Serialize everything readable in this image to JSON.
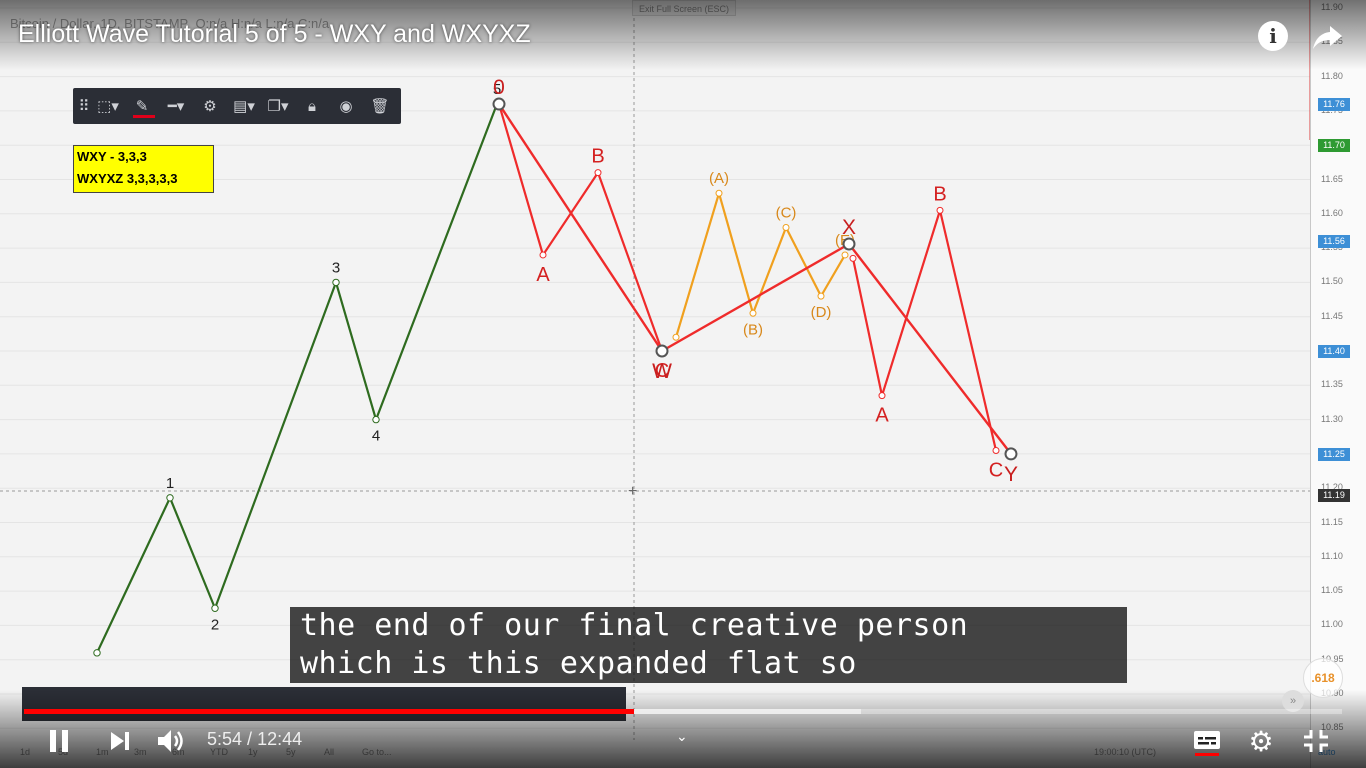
{
  "video": {
    "title": "Elliott Wave Tutorial 5 of 5 - WXY and WXYXZ",
    "current_time": "5:54",
    "duration": "12:44",
    "played_fraction": 0.463,
    "caption_lines": [
      "the end of our final creative person",
      "which is this expanded flat so"
    ]
  },
  "chart_header": {
    "symbol": "Bitcoin / Dollar, 1D, BITSTAMP",
    "ohlc": "O:n/a H:n/a L:n/a C:n/a",
    "exit_fullscreen": "Exit Full Screen (ESC)"
  },
  "note": {
    "line1": "WXY - 3,3,3",
    "line2": "WXYXZ 3,3,3,3,3"
  },
  "price_axis": {
    "ticks": [
      "11.90",
      "11.85",
      "11.80",
      "11.75",
      "11.70",
      "11.65",
      "11.60",
      "11.55",
      "11.50",
      "11.45",
      "11.40",
      "11.35",
      "11.30",
      "11.25",
      "11.20",
      "11.15",
      "11.10",
      "11.05",
      "11.00",
      "10.95",
      "10.90",
      "10.85"
    ],
    "labels": [
      {
        "value": "11.76",
        "color": "#3d8fd6"
      },
      {
        "value": "11.70",
        "color": "#2e9a32"
      },
      {
        "value": "11.56",
        "color": "#3d8fd6"
      },
      {
        "value": "11.40",
        "color": "#3d8fd6"
      },
      {
        "value": "11.25",
        "color": "#3d8fd6"
      },
      {
        "value": "11.19",
        "color": "#333333"
      }
    ]
  },
  "bottom_bar": {
    "periods": [
      "1d",
      "5d",
      "1m",
      "3m",
      "6m",
      "YTD",
      "1y",
      "5y",
      "All",
      "Go to..."
    ],
    "clock": "19:00:10 (UTC)",
    "scale": "auto"
  },
  "fib_badge": ".618",
  "chart_data": {
    "type": "line",
    "y_unit": "price",
    "ylim": [
      10.85,
      11.9
    ],
    "impulse": {
      "color": "#2e6b1f",
      "points": [
        [
          97,
          10.96
        ],
        [
          170,
          11.186
        ],
        [
          215,
          11.025
        ],
        [
          336,
          11.5
        ],
        [
          376,
          11.3
        ],
        [
          497,
          11.76
        ]
      ],
      "labels": [
        {
          "text": "1",
          "at": 1,
          "pos": "above"
        },
        {
          "text": "2",
          "at": 2,
          "pos": "below"
        },
        {
          "text": "3",
          "at": 3,
          "pos": "above"
        },
        {
          "text": "4",
          "at": 4,
          "pos": "below"
        },
        {
          "text": "5",
          "at": 5,
          "pos": "above"
        }
      ]
    },
    "w_wave": {
      "color": "#ef2b2b",
      "points": [
        [
          499,
          11.76
        ],
        [
          543,
          11.54
        ],
        [
          598,
          11.66
        ],
        [
          662,
          11.4
        ]
      ],
      "labels": [
        {
          "text": "A",
          "at": 1,
          "pos": "below"
        },
        {
          "text": "B",
          "at": 2,
          "pos": "above"
        },
        {
          "text": "C",
          "at": 3,
          "pos": "below"
        }
      ]
    },
    "wxy": {
      "color": "#ef2b2b",
      "points": [
        [
          499,
          11.76
        ],
        [
          662,
          11.4
        ],
        [
          849,
          11.556
        ],
        [
          1011,
          11.25
        ]
      ],
      "labels": [
        {
          "text": "0",
          "at": 0,
          "pos": "above"
        },
        {
          "text": "W",
          "at": 1,
          "pos": "below"
        },
        {
          "text": "X",
          "at": 2,
          "pos": "above"
        },
        {
          "text": "Y",
          "at": 3,
          "pos": "below"
        }
      ]
    },
    "triangle": {
      "color": "#f0a01e",
      "points": [
        [
          676,
          11.42
        ],
        [
          719,
          11.63
        ],
        [
          753,
          11.455
        ],
        [
          786,
          11.58
        ],
        [
          821,
          11.48
        ],
        [
          845,
          11.54
        ]
      ],
      "labels": [
        {
          "text": "(A)",
          "at": 1,
          "pos": "above"
        },
        {
          "text": "(B)",
          "at": 2,
          "pos": "below"
        },
        {
          "text": "(C)",
          "at": 3,
          "pos": "above"
        },
        {
          "text": "(D)",
          "at": 4,
          "pos": "below"
        },
        {
          "text": "(E)",
          "at": 5,
          "pos": "above"
        }
      ]
    },
    "y_wave": {
      "color": "#ef2b2b",
      "points": [
        [
          853,
          11.535
        ],
        [
          882,
          11.335
        ],
        [
          940,
          11.605
        ],
        [
          996,
          11.255
        ]
      ],
      "labels": [
        {
          "text": "A",
          "at": 1,
          "pos": "below"
        },
        {
          "text": "B",
          "at": 2,
          "pos": "above"
        },
        {
          "text": "C",
          "at": 3,
          "pos": "below"
        }
      ]
    }
  }
}
